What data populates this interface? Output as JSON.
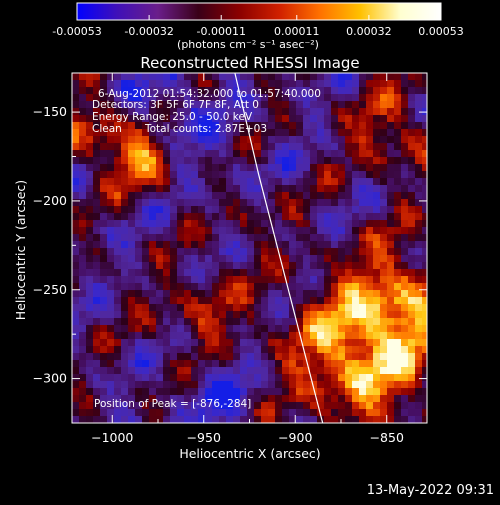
{
  "colorbar": {
    "ticks": [
      "-0.00053",
      "-0.00032",
      "-0.00011",
      "0.00011",
      "0.00032",
      "0.00053"
    ],
    "tick_values": [
      -0.00053,
      -0.00032,
      -0.00011,
      0.00011,
      0.00032,
      0.00053
    ],
    "range": [
      -0.00053,
      0.00053
    ],
    "units": "(photons cm⁻² s⁻¹ asec⁻²)",
    "colors": [
      "#0000ff",
      "#4010b8",
      "#6a1e8a",
      "#3a0018",
      "#8a0000",
      "#d02000",
      "#ff7000",
      "#ffc000",
      "#ffffd0",
      "#ffffff"
    ]
  },
  "title": "Reconstructed RHESSI Image",
  "annotations": {
    "time_range": "6-Aug-2012 01:54:32.000 to 01:57:40.000",
    "detectors": "Detectors: 3F 5F 6F 7F 8F, Att 0",
    "energy_range": "Energy Range: 25.0 - 50.0 keV",
    "algorithm": "Clean",
    "total_counts": "Total counts: 2.87E+03",
    "peak_position": "Position of Peak = [-876,-284]"
  },
  "axes": {
    "xlabel": "Heliocentric X (arcsec)",
    "ylabel": "Heliocentric Y (arcsec)",
    "xlim": [
      -1022,
      -828
    ],
    "ylim": [
      -325,
      -128
    ],
    "xticks": [
      -1000,
      -950,
      -900,
      -850
    ],
    "yticks": [
      -150,
      -200,
      -250,
      -300
    ],
    "xtick_labels": [
      "−1000",
      "−950",
      "−900",
      "−850"
    ],
    "ytick_labels": [
      "−150",
      "−200",
      "−250",
      "−300"
    ]
  },
  "limb_curve": [
    [
      -933,
      -128
    ],
    [
      -920,
      -185
    ],
    [
      -905,
      -245
    ],
    [
      -890,
      -305
    ],
    [
      -885,
      -325
    ]
  ],
  "footer": {
    "timestamp": "13-May-2022 09:31"
  }
}
